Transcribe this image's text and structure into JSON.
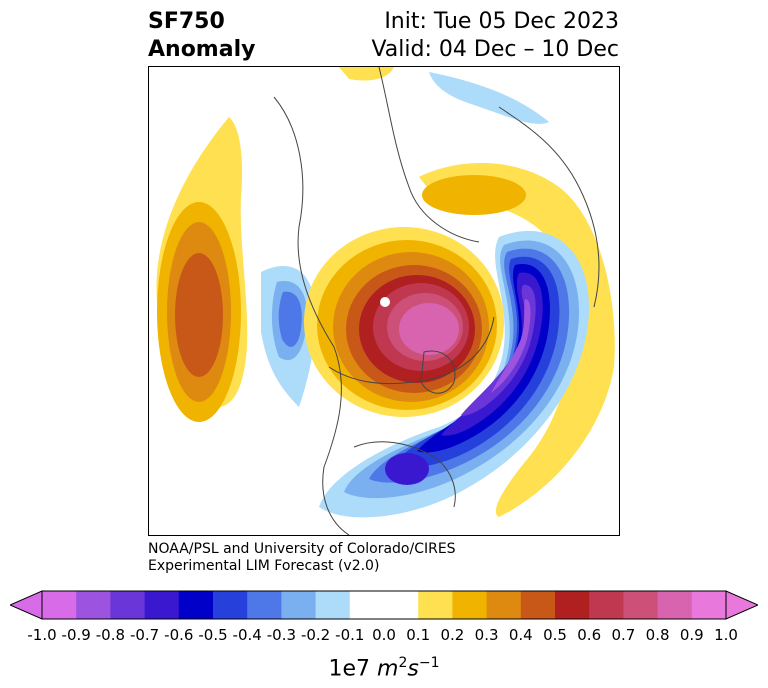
{
  "header": {
    "title_line1": "SF750",
    "title_line2": "Anomaly",
    "init_text": "Init: Tue 05 Dec 2023",
    "valid_text": "Valid: 04 Dec – 10 Dec"
  },
  "credit": {
    "line1": "NOAA/PSL and University of Colorado/CIRES",
    "line2": "Experimental LIM Forecast (v2.0)"
  },
  "colorbar": {
    "label_prefix": "1e7 ",
    "label_unit_m": "m",
    "label_exp_m": "2",
    "label_unit_s": "s",
    "label_exp_s": "−1",
    "ticks": [
      "-1.0",
      "-0.9",
      "-0.8",
      "-0.7",
      "-0.6",
      "-0.5",
      "-0.4",
      "-0.3",
      "-0.2",
      "-0.1",
      "0.0",
      "0.1",
      "0.2",
      "0.3",
      "0.4",
      "0.5",
      "0.6",
      "0.7",
      "0.8",
      "0.9",
      "1.0"
    ],
    "colors": [
      "#d86ce8",
      "#9c54e0",
      "#6a36d8",
      "#3a18d0",
      "#0000c8",
      "#2640dc",
      "#4e78e8",
      "#7ab0f0",
      "#acdcfa",
      "#ffffff",
      "#ffffff",
      "#ffe050",
      "#f0b400",
      "#de8a10",
      "#c85818",
      "#b02020",
      "#c03850",
      "#cc5078",
      "#d864b0",
      "#e878dc"
    ],
    "under_color": "#d86ce8",
    "over_color": "#e878dc"
  }
}
